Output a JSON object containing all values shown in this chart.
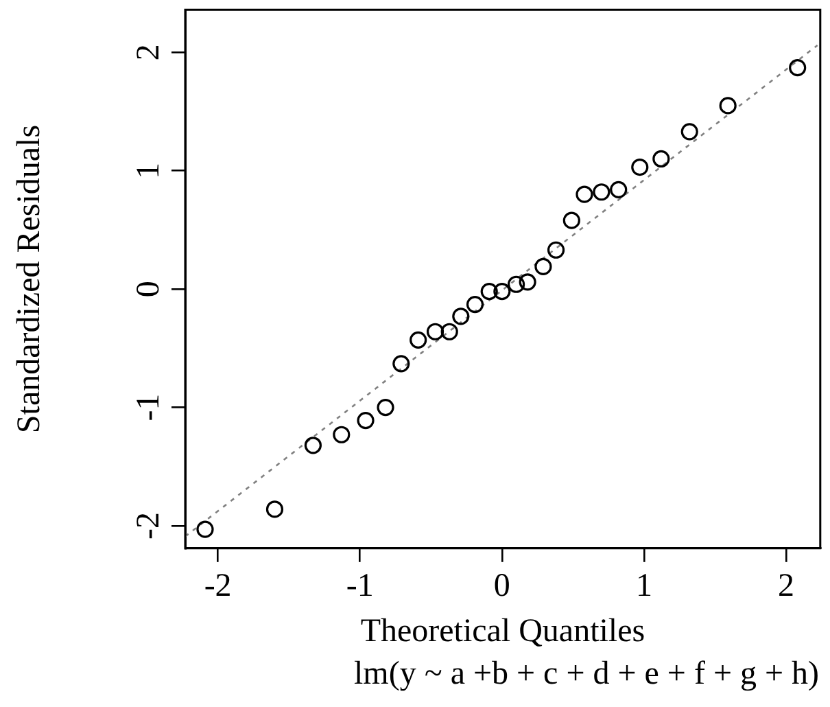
{
  "chart_data": {
    "type": "scatter",
    "xlabel": "Theoretical Quantiles",
    "ylabel": "Standardized Residuals",
    "annotations": [
      "lm(y ~ a +b + c + d + e + f + g + h)"
    ],
    "xlim": [
      -2.23,
      2.24
    ],
    "ylim": [
      -2.19,
      2.36
    ],
    "xticks": [
      -2,
      -1,
      0,
      1,
      2
    ],
    "yticks": [
      -2,
      -1,
      0,
      1,
      2
    ],
    "marker": "circle",
    "grid": false,
    "legend": false,
    "series": [
      {
        "color": "#000000",
        "x": [
          -2.09,
          -1.6,
          -1.33,
          -1.13,
          -0.96,
          -0.82,
          -0.71,
          -0.59,
          -0.47,
          -0.37,
          -0.29,
          -0.19,
          -0.09,
          0.0,
          0.1,
          0.18,
          0.29,
          0.38,
          0.49,
          0.58,
          0.7,
          0.82,
          0.97,
          1.12,
          1.32,
          1.59,
          2.08
        ],
        "values": [
          -2.03,
          -1.86,
          -1.32,
          -1.23,
          -1.11,
          -1.0,
          -0.63,
          -0.43,
          -0.36,
          -0.36,
          -0.23,
          -0.13,
          -0.02,
          -0.02,
          0.04,
          0.06,
          0.19,
          0.33,
          0.58,
          0.8,
          0.82,
          0.84,
          1.03,
          1.1,
          1.33,
          1.55,
          1.87
        ]
      },
      {
        "type": "line",
        "color": "#808080",
        "line_style": "dotted",
        "marker": "none",
        "x": [
          -2.23,
          2.22
        ],
        "values": [
          -2.09,
          2.06
        ]
      }
    ]
  }
}
